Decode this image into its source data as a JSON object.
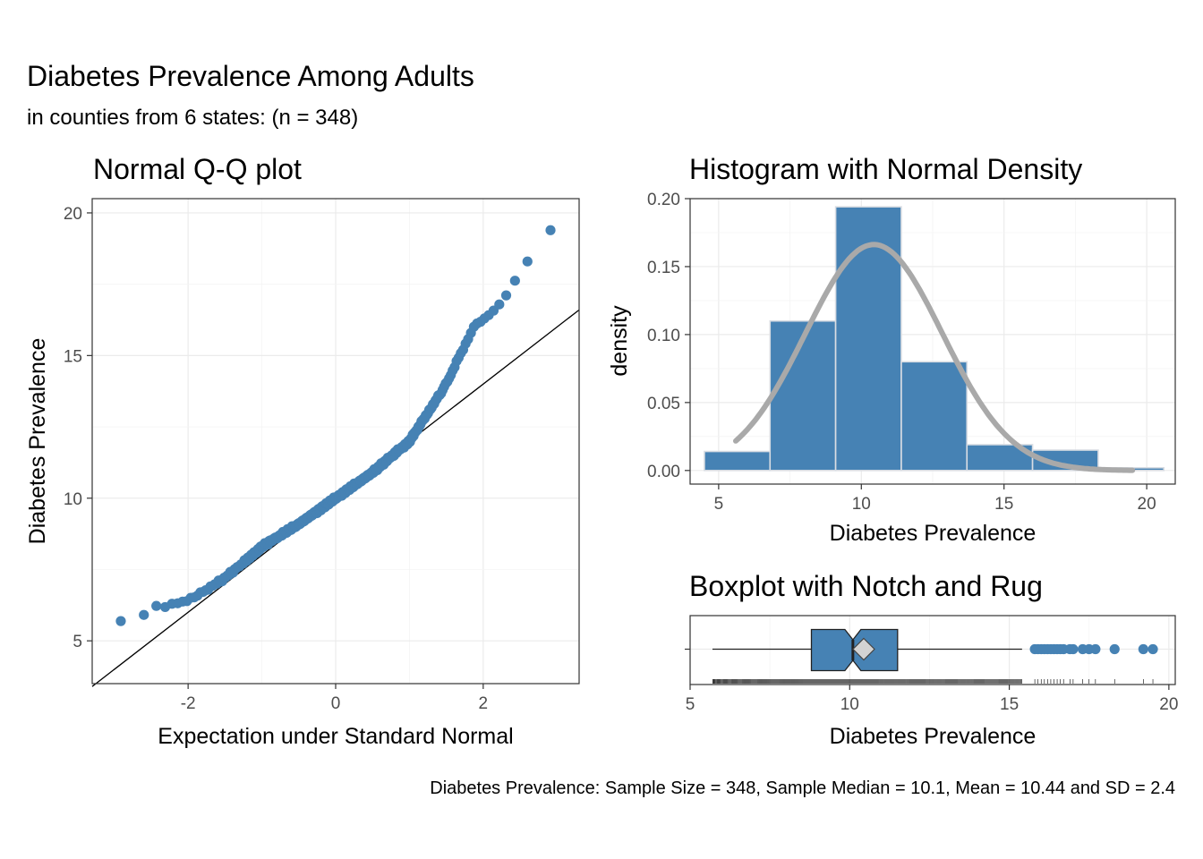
{
  "title": "Diabetes Prevalence Among Adults",
  "subtitle": "in counties from 6 states: (n = 348)",
  "caption": "Diabetes Prevalence: Sample Size = 348, Sample Median = 10.1, Mean = 10.44 and SD = 2.4",
  "colors": {
    "points": "#4682b4",
    "bars": "#4682b4",
    "density": "#a9a9a9",
    "mean_marker": "#d3d3d3"
  },
  "chart_data": [
    {
      "type": "scatter",
      "title": "Normal Q-Q plot",
      "xlabel": "Expectation under Standard Normal",
      "ylabel": "Diabetes Prevalence",
      "xlim": [
        -3.3,
        3.3
      ],
      "ylim": [
        3.5,
        20.5
      ],
      "x_ticks": [
        -2,
        0,
        2
      ],
      "y_ticks": [
        5,
        10,
        15,
        20
      ],
      "x_tick_labels": [
        "-2",
        "0",
        "2"
      ],
      "y_tick_labels": [
        "5",
        "10",
        "15",
        "20"
      ],
      "reference_line": {
        "intercept": 10.0,
        "slope": 2.0
      },
      "sample": {
        "n": 348,
        "mean": 10.44,
        "sd": 2.4
      },
      "quantile_anchors": [
        [
          -3.0,
          5.6
        ],
        [
          -2.6,
          5.9
        ],
        [
          -2.4,
          6.2
        ],
        [
          -2.0,
          6.4
        ],
        [
          -1.5,
          7.2
        ],
        [
          -1.0,
          8.3
        ],
        [
          -0.5,
          9.1
        ],
        [
          0.0,
          10.0
        ],
        [
          0.5,
          10.9
        ],
        [
          1.0,
          12.0
        ],
        [
          1.2,
          12.8
        ],
        [
          1.5,
          14.0
        ],
        [
          1.7,
          15.1
        ],
        [
          1.9,
          16.1
        ],
        [
          2.2,
          16.7
        ],
        [
          2.4,
          17.5
        ],
        [
          2.6,
          18.3
        ],
        [
          2.75,
          19.2
        ],
        [
          3.0,
          19.5
        ]
      ],
      "grid": true
    },
    {
      "type": "bar",
      "title": "Histogram with Normal Density",
      "xlabel": "Diabetes Prevalence",
      "ylabel": "density",
      "xlim": [
        4.0,
        21.0
      ],
      "ylim": [
        -0.01,
        0.2
      ],
      "x_ticks": [
        5,
        10,
        15,
        20
      ],
      "y_ticks": [
        0.0,
        0.05,
        0.1,
        0.15,
        0.2
      ],
      "x_tick_labels": [
        "5",
        "10",
        "15",
        "20"
      ],
      "y_tick_labels": [
        "0.00",
        "0.05",
        "0.10",
        "0.15",
        "0.20"
      ],
      "bins": [
        {
          "x0": 4.5,
          "x1": 6.8,
          "density": 0.014
        },
        {
          "x0": 6.8,
          "x1": 9.1,
          "density": 0.11
        },
        {
          "x0": 9.1,
          "x1": 11.4,
          "density": 0.194
        },
        {
          "x0": 11.4,
          "x1": 13.7,
          "density": 0.08
        },
        {
          "x0": 13.7,
          "x1": 16.0,
          "density": 0.019
        },
        {
          "x0": 16.0,
          "x1": 18.3,
          "density": 0.015
        },
        {
          "x0": 18.3,
          "x1": 20.6,
          "density": 0.002
        }
      ],
      "density_curve": {
        "mean": 10.44,
        "sd": 2.4,
        "x_range": [
          5.6,
          19.5
        ]
      },
      "grid": true
    },
    {
      "type": "box",
      "title": "Boxplot with Notch and Rug",
      "xlabel": "Diabetes Prevalence",
      "xlim": [
        5.0,
        20.2
      ],
      "x_ticks": [
        5,
        10,
        15,
        20
      ],
      "x_tick_labels": [
        "5",
        "10",
        "15",
        "20"
      ],
      "whisker_low": 5.7,
      "q1": 8.8,
      "median": 10.1,
      "q3": 11.5,
      "whisker_high": 15.4,
      "notch_low": 9.85,
      "notch_high": 10.35,
      "mean": 10.44,
      "outliers": [
        15.8,
        15.9,
        16.0,
        16.1,
        16.2,
        16.3,
        16.4,
        16.5,
        16.6,
        16.7,
        16.9,
        17.0,
        17.3,
        17.5,
        17.7,
        18.3,
        19.2,
        19.5
      ],
      "grid": true
    }
  ]
}
